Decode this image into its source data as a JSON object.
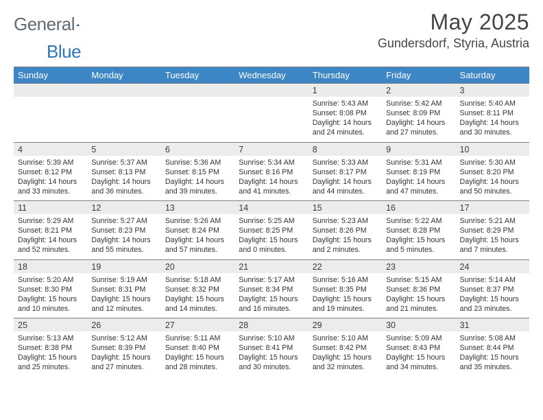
{
  "logo": {
    "text1": "General",
    "text2": "Blue"
  },
  "title": "May 2025",
  "location": "Gundersdorf, Styria, Austria",
  "colors": {
    "header_bg": "#3d86c6",
    "header_text": "#ffffff",
    "daynum_bg": "#ececec",
    "border": "#808080",
    "body_text": "#323232",
    "title_text": "#454545",
    "logo_gray": "#5f6a72",
    "logo_blue": "#2f76b8"
  },
  "weekdays": [
    "Sunday",
    "Monday",
    "Tuesday",
    "Wednesday",
    "Thursday",
    "Friday",
    "Saturday"
  ],
  "weeks": [
    {
      "nums": [
        "",
        "",
        "",
        "",
        "1",
        "2",
        "3"
      ],
      "cells": [
        null,
        null,
        null,
        null,
        {
          "sunrise": "Sunrise: 5:43 AM",
          "sunset": "Sunset: 8:08 PM",
          "day1": "Daylight: 14 hours",
          "day2": "and 24 minutes."
        },
        {
          "sunrise": "Sunrise: 5:42 AM",
          "sunset": "Sunset: 8:09 PM",
          "day1": "Daylight: 14 hours",
          "day2": "and 27 minutes."
        },
        {
          "sunrise": "Sunrise: 5:40 AM",
          "sunset": "Sunset: 8:11 PM",
          "day1": "Daylight: 14 hours",
          "day2": "and 30 minutes."
        }
      ]
    },
    {
      "nums": [
        "4",
        "5",
        "6",
        "7",
        "8",
        "9",
        "10"
      ],
      "cells": [
        {
          "sunrise": "Sunrise: 5:39 AM",
          "sunset": "Sunset: 8:12 PM",
          "day1": "Daylight: 14 hours",
          "day2": "and 33 minutes."
        },
        {
          "sunrise": "Sunrise: 5:37 AM",
          "sunset": "Sunset: 8:13 PM",
          "day1": "Daylight: 14 hours",
          "day2": "and 36 minutes."
        },
        {
          "sunrise": "Sunrise: 5:36 AM",
          "sunset": "Sunset: 8:15 PM",
          "day1": "Daylight: 14 hours",
          "day2": "and 39 minutes."
        },
        {
          "sunrise": "Sunrise: 5:34 AM",
          "sunset": "Sunset: 8:16 PM",
          "day1": "Daylight: 14 hours",
          "day2": "and 41 minutes."
        },
        {
          "sunrise": "Sunrise: 5:33 AM",
          "sunset": "Sunset: 8:17 PM",
          "day1": "Daylight: 14 hours",
          "day2": "and 44 minutes."
        },
        {
          "sunrise": "Sunrise: 5:31 AM",
          "sunset": "Sunset: 8:19 PM",
          "day1": "Daylight: 14 hours",
          "day2": "and 47 minutes."
        },
        {
          "sunrise": "Sunrise: 5:30 AM",
          "sunset": "Sunset: 8:20 PM",
          "day1": "Daylight: 14 hours",
          "day2": "and 50 minutes."
        }
      ]
    },
    {
      "nums": [
        "11",
        "12",
        "13",
        "14",
        "15",
        "16",
        "17"
      ],
      "cells": [
        {
          "sunrise": "Sunrise: 5:29 AM",
          "sunset": "Sunset: 8:21 PM",
          "day1": "Daylight: 14 hours",
          "day2": "and 52 minutes."
        },
        {
          "sunrise": "Sunrise: 5:27 AM",
          "sunset": "Sunset: 8:23 PM",
          "day1": "Daylight: 14 hours",
          "day2": "and 55 minutes."
        },
        {
          "sunrise": "Sunrise: 5:26 AM",
          "sunset": "Sunset: 8:24 PM",
          "day1": "Daylight: 14 hours",
          "day2": "and 57 minutes."
        },
        {
          "sunrise": "Sunrise: 5:25 AM",
          "sunset": "Sunset: 8:25 PM",
          "day1": "Daylight: 15 hours",
          "day2": "and 0 minutes."
        },
        {
          "sunrise": "Sunrise: 5:23 AM",
          "sunset": "Sunset: 8:26 PM",
          "day1": "Daylight: 15 hours",
          "day2": "and 2 minutes."
        },
        {
          "sunrise": "Sunrise: 5:22 AM",
          "sunset": "Sunset: 8:28 PM",
          "day1": "Daylight: 15 hours",
          "day2": "and 5 minutes."
        },
        {
          "sunrise": "Sunrise: 5:21 AM",
          "sunset": "Sunset: 8:29 PM",
          "day1": "Daylight: 15 hours",
          "day2": "and 7 minutes."
        }
      ]
    },
    {
      "nums": [
        "18",
        "19",
        "20",
        "21",
        "22",
        "23",
        "24"
      ],
      "cells": [
        {
          "sunrise": "Sunrise: 5:20 AM",
          "sunset": "Sunset: 8:30 PM",
          "day1": "Daylight: 15 hours",
          "day2": "and 10 minutes."
        },
        {
          "sunrise": "Sunrise: 5:19 AM",
          "sunset": "Sunset: 8:31 PM",
          "day1": "Daylight: 15 hours",
          "day2": "and 12 minutes."
        },
        {
          "sunrise": "Sunrise: 5:18 AM",
          "sunset": "Sunset: 8:32 PM",
          "day1": "Daylight: 15 hours",
          "day2": "and 14 minutes."
        },
        {
          "sunrise": "Sunrise: 5:17 AM",
          "sunset": "Sunset: 8:34 PM",
          "day1": "Daylight: 15 hours",
          "day2": "and 16 minutes."
        },
        {
          "sunrise": "Sunrise: 5:16 AM",
          "sunset": "Sunset: 8:35 PM",
          "day1": "Daylight: 15 hours",
          "day2": "and 19 minutes."
        },
        {
          "sunrise": "Sunrise: 5:15 AM",
          "sunset": "Sunset: 8:36 PM",
          "day1": "Daylight: 15 hours",
          "day2": "and 21 minutes."
        },
        {
          "sunrise": "Sunrise: 5:14 AM",
          "sunset": "Sunset: 8:37 PM",
          "day1": "Daylight: 15 hours",
          "day2": "and 23 minutes."
        }
      ]
    },
    {
      "nums": [
        "25",
        "26",
        "27",
        "28",
        "29",
        "30",
        "31"
      ],
      "cells": [
        {
          "sunrise": "Sunrise: 5:13 AM",
          "sunset": "Sunset: 8:38 PM",
          "day1": "Daylight: 15 hours",
          "day2": "and 25 minutes."
        },
        {
          "sunrise": "Sunrise: 5:12 AM",
          "sunset": "Sunset: 8:39 PM",
          "day1": "Daylight: 15 hours",
          "day2": "and 27 minutes."
        },
        {
          "sunrise": "Sunrise: 5:11 AM",
          "sunset": "Sunset: 8:40 PM",
          "day1": "Daylight: 15 hours",
          "day2": "and 28 minutes."
        },
        {
          "sunrise": "Sunrise: 5:10 AM",
          "sunset": "Sunset: 8:41 PM",
          "day1": "Daylight: 15 hours",
          "day2": "and 30 minutes."
        },
        {
          "sunrise": "Sunrise: 5:10 AM",
          "sunset": "Sunset: 8:42 PM",
          "day1": "Daylight: 15 hours",
          "day2": "and 32 minutes."
        },
        {
          "sunrise": "Sunrise: 5:09 AM",
          "sunset": "Sunset: 8:43 PM",
          "day1": "Daylight: 15 hours",
          "day2": "and 34 minutes."
        },
        {
          "sunrise": "Sunrise: 5:08 AM",
          "sunset": "Sunset: 8:44 PM",
          "day1": "Daylight: 15 hours",
          "day2": "and 35 minutes."
        }
      ]
    }
  ]
}
